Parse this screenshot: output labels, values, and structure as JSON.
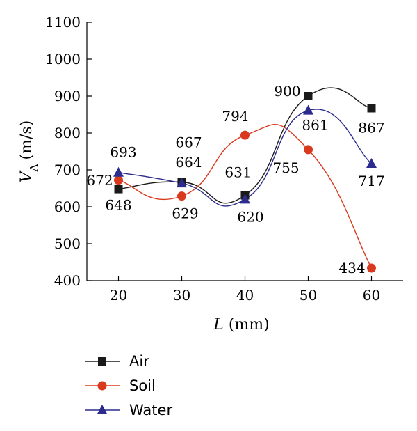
{
  "chart_data": {
    "type": "line",
    "xlabel_var": "L",
    "xlabel_unit": "(mm)",
    "ylabel_var": "V",
    "ylabel_sub": "A",
    "ylabel_unit": "(m/s)",
    "x": [
      20,
      30,
      40,
      50,
      60
    ],
    "xticks": [
      "20",
      "30",
      "40",
      "50",
      "60"
    ],
    "yticks": [
      "400",
      "500",
      "600",
      "700",
      "800",
      "900",
      "1000",
      "1100"
    ],
    "xlim": [
      15,
      65
    ],
    "ylim": [
      400,
      1100
    ],
    "smooth": true,
    "grid": false,
    "legend_position": "bottom-left",
    "series": [
      {
        "name": "Air",
        "values": [
          648,
          667,
          631,
          900,
          867
        ],
        "labels": [
          "648",
          "667",
          "631",
          "900",
          "867"
        ],
        "color": "#1a1a1a",
        "marker": "square"
      },
      {
        "name": "Soil",
        "values": [
          672,
          629,
          794,
          755,
          434
        ],
        "labels": [
          "672",
          "629",
          "794",
          "755",
          "434"
        ],
        "color": "#d93a1e",
        "marker": "circle"
      },
      {
        "name": "Water",
        "values": [
          693,
          664,
          620,
          861,
          717
        ],
        "labels": [
          "693",
          "664",
          "620",
          "861",
          "717"
        ],
        "color": "#2c2c8f",
        "marker": "triangle"
      }
    ]
  }
}
